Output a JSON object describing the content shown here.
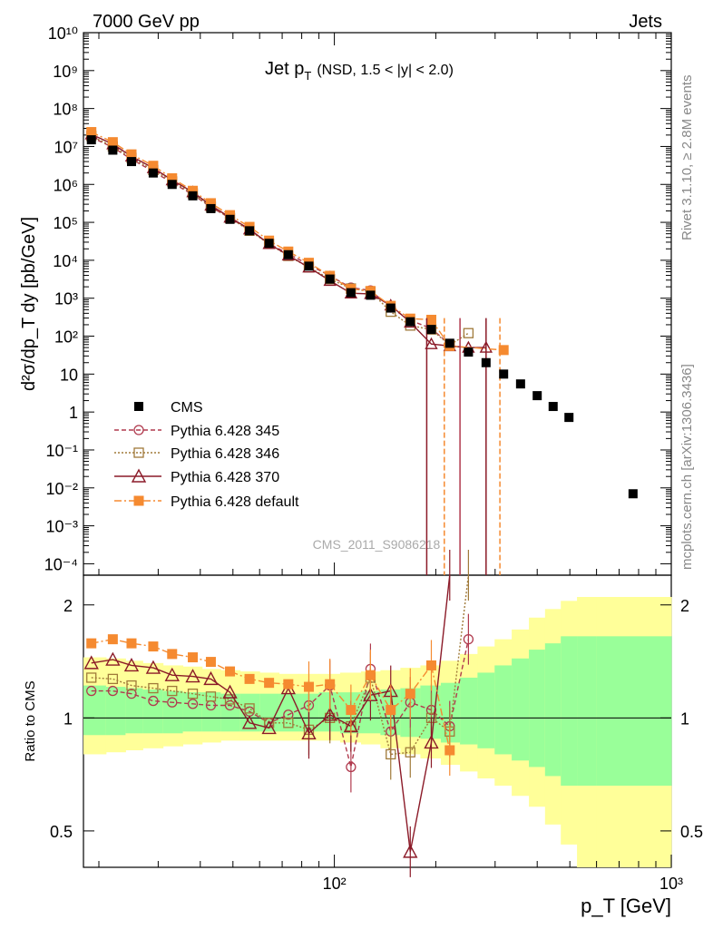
{
  "header": {
    "left": "7000 GeV pp",
    "right": "Jets",
    "side_top": "Rivet 3.1.10, ≥ 2.8M events",
    "side_bottom": "mcplots.cern.ch [arXiv:1306.3436]"
  },
  "main": {
    "title_main": "Jet p",
    "title_sub": "T",
    "title_extra": "(NSD, 1.5 < |y| < 2.0)",
    "watermark": "CMS_2011_S9086218",
    "ylabel": "d²σ/dp_T dy [pb/GeV]",
    "y_ticks": [
      "10⁻⁴",
      "10⁻³",
      "10⁻²",
      "10⁻¹",
      "1",
      "10",
      "10²",
      "10³",
      "10⁴",
      "10⁵",
      "10⁶",
      "10⁷",
      "10⁸",
      "10⁹",
      "10¹⁰"
    ]
  },
  "ratio": {
    "ylabel": "Ratio to CMS",
    "y_ticks": [
      "0.5",
      "1",
      "2"
    ]
  },
  "xaxis": {
    "label": "p_T [GeV]",
    "ticks": [
      "10²",
      "10³"
    ]
  },
  "legend": [
    {
      "label": "CMS",
      "color": "#000000"
    },
    {
      "label": "Pythia 6.428 345",
      "color": "#b03a4e"
    },
    {
      "label": "Pythia 6.428 346",
      "color": "#a07a3a"
    },
    {
      "label": "Pythia 6.428 370",
      "color": "#8b1a28"
    },
    {
      "label": "Pythia 6.428 default",
      "color": "#f58a30"
    }
  ],
  "chart_data": {
    "type": "scatter",
    "x_scale": "log",
    "xlim": [
      18,
      1000
    ],
    "ylim": [
      5e-05,
      10000000000
    ],
    "ratio_ylim": [
      0.4,
      2.4
    ],
    "x": [
      19,
      22,
      25,
      29,
      33,
      38,
      43,
      49,
      56,
      64,
      73,
      84,
      97,
      112,
      128,
      147,
      168,
      194,
      220,
      250,
      282,
      318,
      357,
      400,
      446,
      497
    ],
    "cms": [
      15000000.0,
      8000000.0,
      4000000.0,
      2000000.0,
      1000000.0,
      500000.0,
      230000.0,
      120000.0,
      60000.0,
      28000.0,
      14000.0,
      7000.0,
      3200.0,
      1400.0,
      1200.0,
      550.0,
      240.0,
      150.0,
      65.0,
      38.0,
      20.0,
      10.0,
      5.5,
      2.7,
      1.4,
      0.72
    ],
    "cms_extra": {
      "x": 770,
      "y": 0.007
    },
    "series": [
      {
        "name": "Pythia 6.428 345",
        "values": [
          17500000.0,
          9500000.0,
          4600000.0,
          2200000.0,
          1100000.0,
          540000.0,
          250000.0,
          130000.0,
          64000.0,
          27000.0,
          15000.0,
          7600.0,
          3900.0,
          1900.0,
          1600.0,
          570.0,
          260.0,
          160.0,
          60.0,
          null,
          null,
          null
        ]
      },
      {
        "name": "Pythia 6.428 346",
        "values": [
          19000000.0,
          10000000.0,
          5000000.0,
          2400000.0,
          1200000.0,
          580000.0,
          260000.0,
          130000.0,
          60000.0,
          27000.0,
          13000.0,
          6500.0,
          3200.0,
          1800.0,
          1500.0,
          440.0,
          190.0,
          150.0,
          58.0,
          120.0,
          null,
          null
        ]
      },
      {
        "name": "Pythia 6.428 370",
        "values": [
          21000000.0,
          11500000.0,
          5500000.0,
          2700000.0,
          1300000.0,
          630000.0,
          280000.0,
          135000.0,
          66000.0,
          27000.0,
          13500.0,
          6500.0,
          2900.0,
          1350.0,
          1300.0,
          650.0,
          230.0,
          62.0,
          55.0,
          50.0,
          50.0,
          null
        ]
      },
      {
        "name": "Pythia 6.428 default",
        "values": [
          24000000.0,
          13000000.0,
          6200000.0,
          3100000.0,
          1450000.0,
          680000.0,
          320000.0,
          155000.0,
          76000.0,
          33000.0,
          17000.0,
          8600.0,
          3900.0,
          1750.0,
          1550.0,
          630.0,
          290.0,
          270.0,
          55.0,
          null,
          null,
          43.0
        ]
      }
    ],
    "ratio_series": [
      {
        "name": "Pythia 6.428 345",
        "values": [
          1.18,
          1.18,
          1.16,
          1.11,
          1.1,
          1.09,
          1.08,
          1.08,
          1.04,
          0.97,
          1.02,
          1.08,
          1.22,
          0.74,
          1.35,
          0.92,
          1.1,
          1.05,
          0.95,
          1.62
        ]
      },
      {
        "name": "Pythia 6.428 346",
        "values": [
          1.28,
          1.27,
          1.22,
          1.2,
          1.18,
          1.16,
          1.14,
          1.12,
          1.06,
          0.97,
          0.97,
          0.93,
          1.0,
          0.95,
          1.28,
          0.8,
          0.81,
          1.0,
          0.92,
          2.4
        ]
      },
      {
        "name": "Pythia 6.428 370",
        "values": [
          1.4,
          1.43,
          1.38,
          1.36,
          1.3,
          1.29,
          1.27,
          1.17,
          0.97,
          0.94,
          1.2,
          0.91,
          1.02,
          0.95,
          1.15,
          1.18,
          0.44,
          0.86,
          2.4
        ]
      },
      {
        "name": "Pythia 6.428 default",
        "values": [
          1.58,
          1.62,
          1.58,
          1.55,
          1.48,
          1.45,
          1.41,
          1.33,
          1.27,
          1.24,
          1.23,
          1.21,
          1.23,
          1.05,
          1.3,
          1.05,
          1.16,
          1.38,
          0.82
        ]
      }
    ]
  }
}
